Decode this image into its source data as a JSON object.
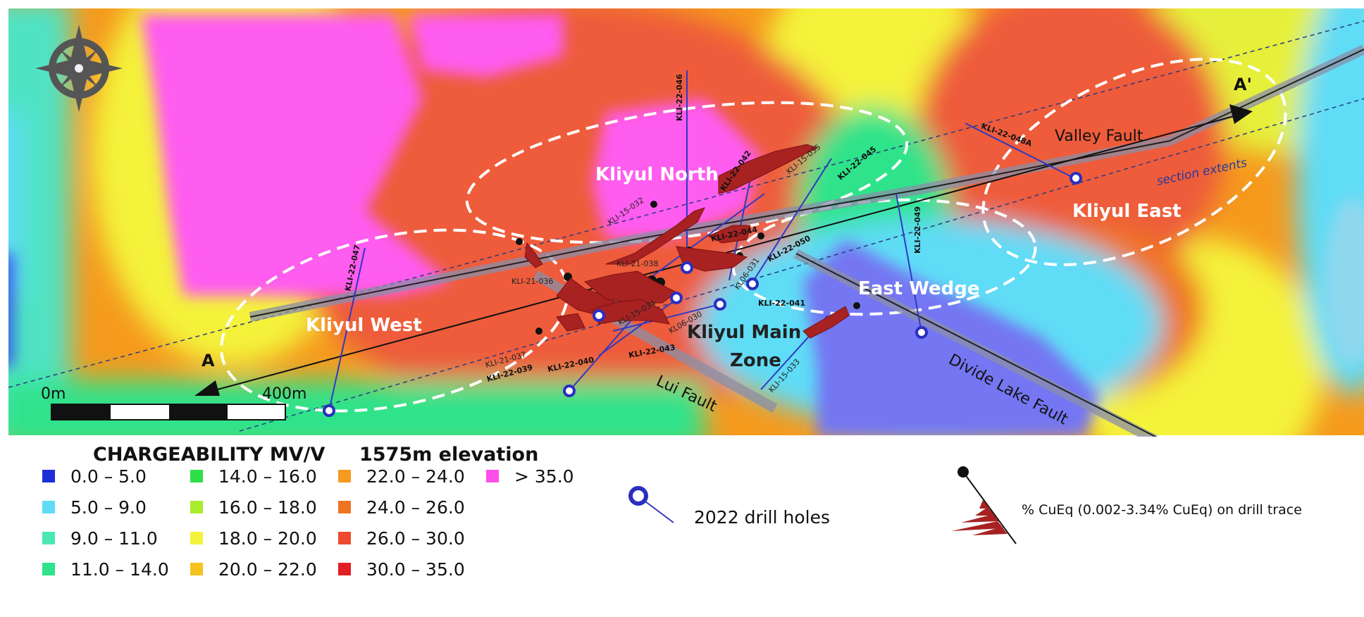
{
  "map": {
    "north_arrow": "compass-rose-icon",
    "zones": {
      "west": "Kliyul West",
      "north": "Kliyul North",
      "main_line1": "Kliyul Main",
      "main_line2": "Zone",
      "east_wedge": "East Wedge",
      "east": "Kliyul East"
    },
    "faults": {
      "valley": "Valley Fault",
      "lui": "Lui Fault",
      "divide": "Divide Lake Fault"
    },
    "section": {
      "label": "section extents",
      "start": "A",
      "end": "A'"
    },
    "scale": {
      "start": "0m",
      "end": "400m"
    },
    "holes": {
      "h046": "KLI-22-046",
      "h047": "KLI-22-047",
      "h042": "KLI-22-042",
      "h045": "KLI-22-045",
      "h035": "KLI-15-035",
      "h048a": "KLI-22-048A",
      "h049": "KLI-22-049",
      "h032": "KLI-15-032",
      "h044": "KLI-22-044",
      "h050": "KLI-22-050",
      "h038": "KLI-21-038",
      "h036": "KLI-21-036",
      "h031": "KL06-031",
      "h041": "KLI-22-041",
      "h034": "KLI-15-034",
      "h030": "KL06-030",
      "h037": "KLI-21-037",
      "h039": "KLI-22-039",
      "h040": "KLI-22-040",
      "h043": "KLI-22-043",
      "h033": "KLI-15-033"
    }
  },
  "legend": {
    "title": "CHARGEABILITY MV/V",
    "elevation": "1575m elevation",
    "classes": [
      {
        "label": "0.0 – 5.0",
        "color": "#1f2fd8"
      },
      {
        "label": "5.0 – 9.0",
        "color": "#5fdcf6"
      },
      {
        "label": "9.0 – 11.0",
        "color": "#4be8b6"
      },
      {
        "label": "11.0 – 14.0",
        "color": "#2ee38a"
      },
      {
        "label": "14.0 – 16.0",
        "color": "#2de04a"
      },
      {
        "label": "16.0 – 18.0",
        "color": "#a9ec2b"
      },
      {
        "label": "18.0 – 20.0",
        "color": "#f4f23a"
      },
      {
        "label": "20.0 – 22.0",
        "color": "#f5c21e"
      },
      {
        "label": "22.0 – 24.0",
        "color": "#f59a1d"
      },
      {
        "label": "24.0 – 26.0",
        "color": "#ef7421"
      },
      {
        "label": "26.0 – 30.0",
        "color": "#ec4b2d"
      },
      {
        "label": "30.0 – 35.0",
        "color": "#e21f25"
      },
      {
        "label": "> 35.0",
        "color": "#ff4fe8"
      }
    ],
    "drill_holes_label": "2022 drill holes",
    "cueq_label": "% CuEq (0.002-3.34% CuEq) on drill trace"
  }
}
